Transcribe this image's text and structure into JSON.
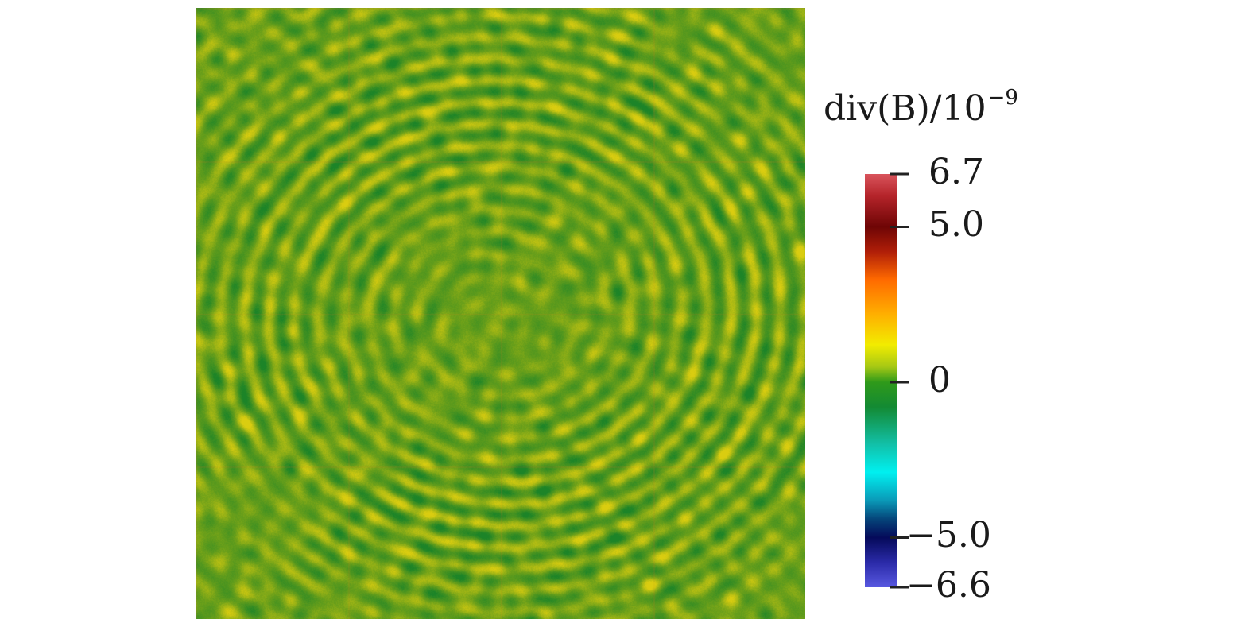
{
  "chart_data": {
    "type": "heatmap",
    "colorbar": {
      "title": "div(B)/10",
      "title_exponent": "−9",
      "min": -6.6,
      "max": 6.7,
      "ticks": [
        {
          "value": 6.7,
          "label": "6.7"
        },
        {
          "value": 5.0,
          "label": "5.0"
        },
        {
          "value": 0,
          "label": "0"
        },
        {
          "value": -5.0,
          "label": "−5.0"
        },
        {
          "value": -6.6,
          "label": "−6.6"
        }
      ],
      "colormap": [
        {
          "value": 6.7,
          "color": "#d9545c"
        },
        {
          "value": 6.0,
          "color": "#b5242a"
        },
        {
          "value": 5.0,
          "color": "#6e0505"
        },
        {
          "value": 4.2,
          "color": "#b01e08"
        },
        {
          "value": 3.3,
          "color": "#ff6a00"
        },
        {
          "value": 2.2,
          "color": "#ffae00"
        },
        {
          "value": 1.2,
          "color": "#f2ec00"
        },
        {
          "value": 0.5,
          "color": "#a6c814"
        },
        {
          "value": 0.0,
          "color": "#2f9a1a"
        },
        {
          "value": -0.8,
          "color": "#138a33"
        },
        {
          "value": -2.0,
          "color": "#12c0a8"
        },
        {
          "value": -2.9,
          "color": "#00f0f0"
        },
        {
          "value": -3.8,
          "color": "#0a9ab8"
        },
        {
          "value": -4.4,
          "color": "#05457a"
        },
        {
          "value": -5.0,
          "color": "#050a5a"
        },
        {
          "value": -5.8,
          "color": "#2a2aa8"
        },
        {
          "value": -6.6,
          "color": "#5858e0"
        }
      ]
    },
    "field": {
      "description": "divergence of B",
      "value_range": [
        -6.6,
        6.7
      ],
      "dominant_color": "#6fa81a",
      "grid_divisions": 4
    }
  }
}
